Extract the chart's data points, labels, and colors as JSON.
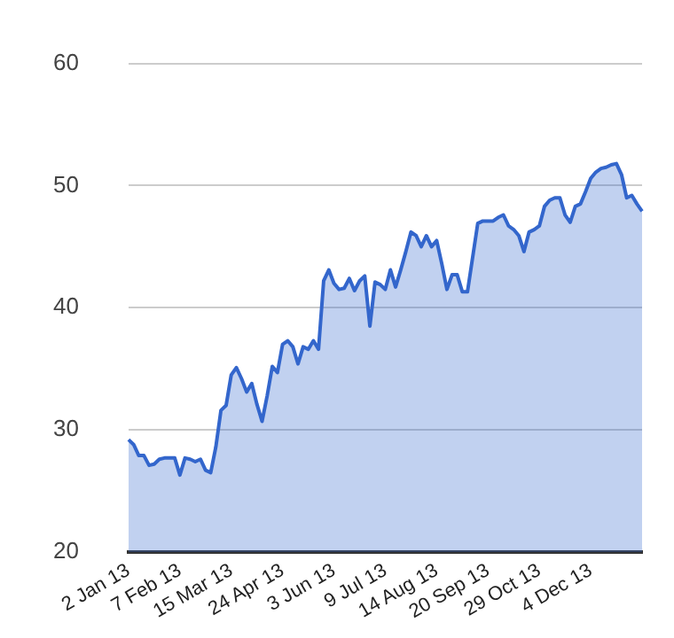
{
  "chart_data": {
    "type": "area",
    "categories": [
      "2 Jan 13",
      null,
      null,
      null,
      null,
      null,
      null,
      null,
      null,
      null,
      "7 Feb 13",
      null,
      null,
      null,
      null,
      null,
      null,
      null,
      null,
      null,
      "15 Mar 13",
      null,
      null,
      null,
      null,
      null,
      null,
      null,
      null,
      null,
      "24 Apr 13",
      null,
      null,
      null,
      null,
      null,
      null,
      null,
      null,
      null,
      "3 Jun 13",
      null,
      null,
      null,
      null,
      null,
      null,
      null,
      null,
      null,
      "9 Jul 13",
      null,
      null,
      null,
      null,
      null,
      null,
      null,
      null,
      null,
      "14 Aug 13",
      null,
      null,
      null,
      null,
      null,
      null,
      null,
      null,
      null,
      "20 Sep 13",
      null,
      null,
      null,
      null,
      null,
      null,
      null,
      null,
      null,
      "29 Oct 13",
      null,
      null,
      null,
      null,
      null,
      null,
      null,
      null,
      null,
      "4 Dec 13",
      null,
      null,
      null,
      null,
      null,
      null,
      null,
      null,
      null,
      null
    ],
    "series": [
      {
        "color": "#3366cc",
        "values": [
          29.2,
          28.8,
          27.9,
          27.9,
          27.1,
          27.2,
          27.6,
          27.7,
          27.7,
          27.7,
          26.3,
          27.7,
          27.6,
          27.4,
          27.6,
          26.7,
          26.5,
          28.6,
          31.6,
          32.0,
          34.5,
          35.1,
          34.2,
          33.1,
          33.8,
          32.1,
          30.7,
          32.8,
          35.2,
          34.7,
          37.0,
          37.3,
          36.8,
          35.4,
          36.8,
          36.6,
          37.3,
          36.6,
          42.2,
          43.1,
          42.0,
          41.5,
          41.6,
          42.4,
          41.4,
          42.2,
          42.6,
          38.5,
          42.1,
          41.9,
          41.5,
          43.1,
          41.7,
          43.1,
          44.6,
          46.2,
          45.9,
          45.0,
          45.9,
          45.0,
          45.5,
          43.6,
          41.5,
          42.7,
          42.7,
          41.3,
          41.3,
          44.1,
          46.9,
          47.1,
          47.1,
          47.1,
          47.4,
          47.6,
          46.7,
          46.4,
          45.9,
          44.6,
          46.2,
          46.4,
          46.7,
          48.3,
          48.8,
          49.0,
          49.0,
          47.6,
          47.0,
          48.3,
          48.5,
          49.5,
          50.6,
          51.1,
          51.4,
          51.5,
          51.7,
          51.8,
          50.9,
          49.0,
          49.2,
          48.5,
          47.9
        ]
      }
    ],
    "ylim": [
      20,
      60
    ],
    "yticks": [
      20,
      30,
      40,
      50,
      60
    ],
    "grid": "y",
    "legend": false
  }
}
